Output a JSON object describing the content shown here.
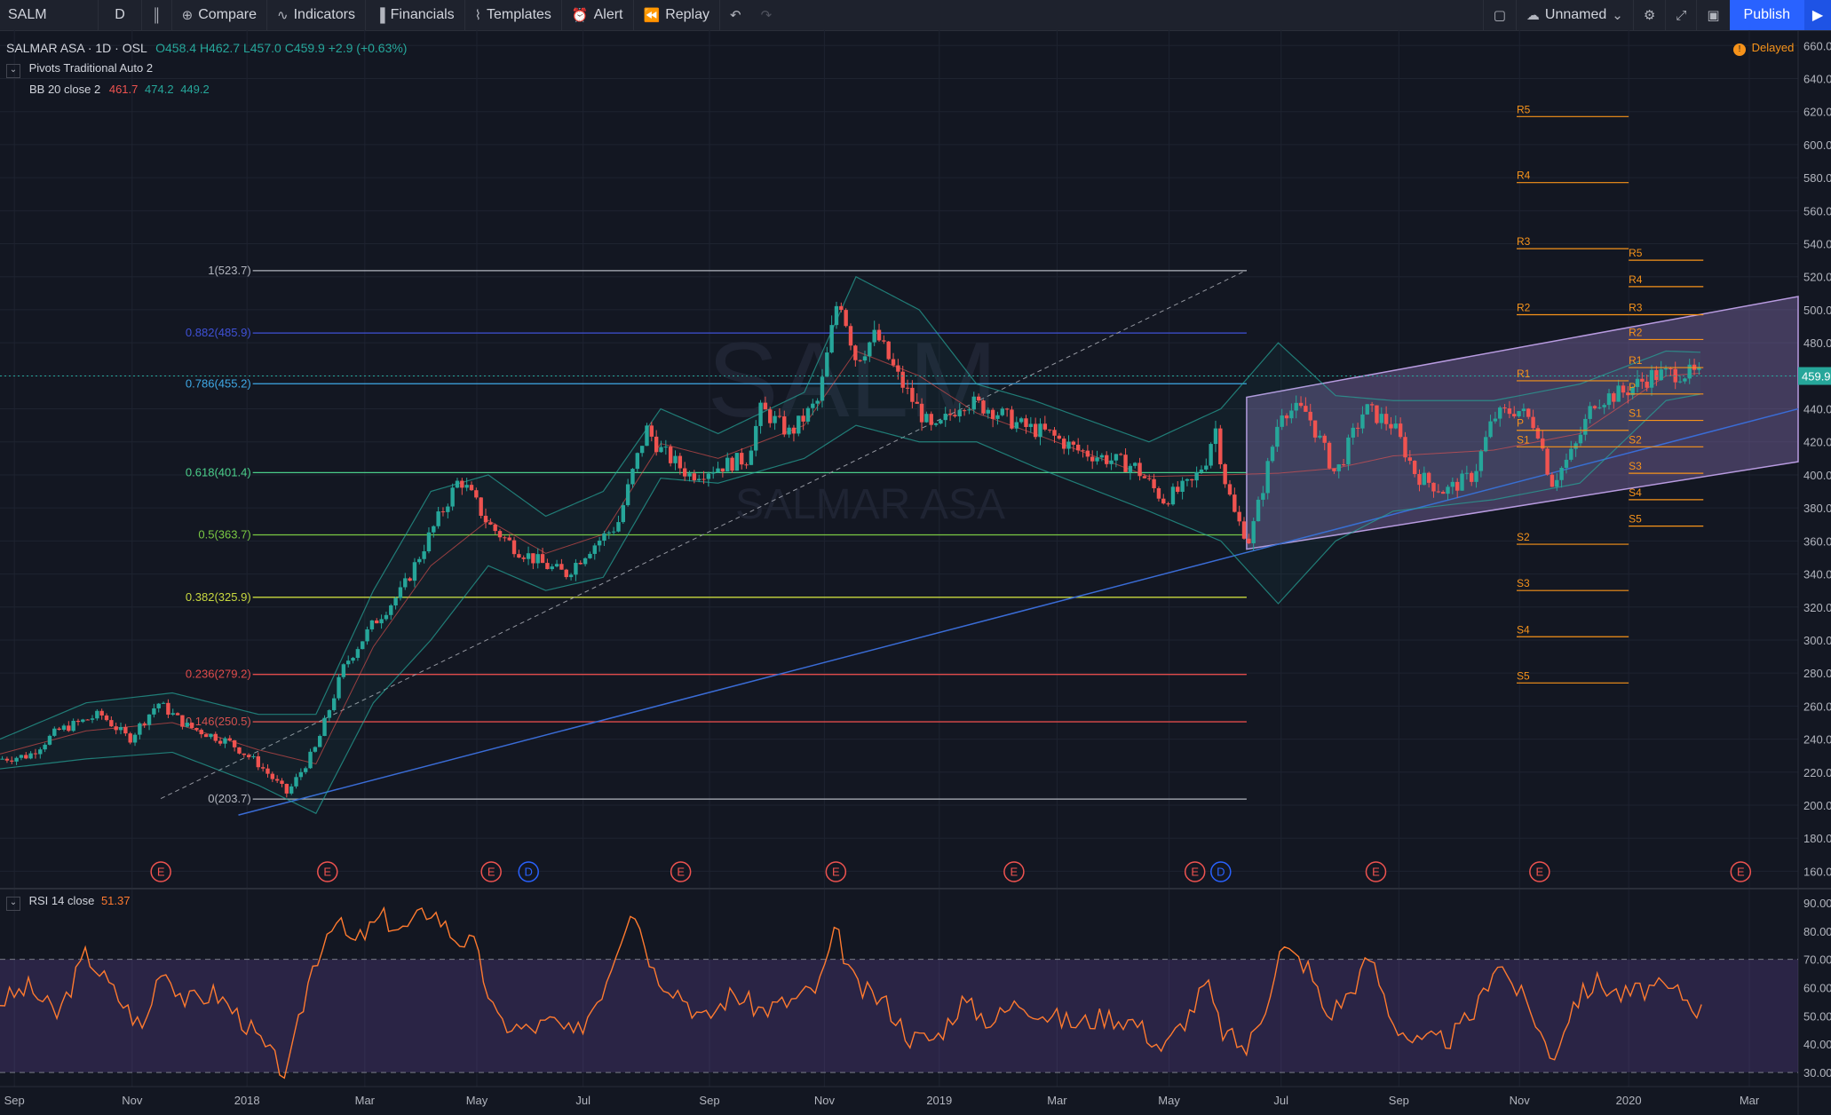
{
  "toolbar": {
    "symbol": "SALM",
    "interval": "D",
    "compare": "Compare",
    "indicators": "Indicators",
    "financials": "Financials",
    "templates": "Templates",
    "alert": "Alert",
    "replay": "Replay",
    "layout_name": "Unnamed",
    "publish": "Publish"
  },
  "legend": {
    "title": "SALMAR ASA · 1D · OSL",
    "open": "O458.4",
    "high": "H462.7",
    "low": "L457.0",
    "close": "C459.9",
    "change": "+2.9 (+0.63%)",
    "pivots": "Pivots Traditional Auto 2",
    "bb_label": "BB 20 close 2",
    "bb_basis": "461.7",
    "bb_upper": "474.2",
    "bb_lower": "449.2",
    "delayed": "Delayed",
    "rsi_label": "RSI 14 close",
    "rsi_value": "51.37",
    "watermark_symbol": "SALM",
    "watermark_name": "SALMAR ASA"
  },
  "colors": {
    "background": "#131722",
    "up": "#26a69a",
    "down": "#ef5350",
    "pivot": "#f7931a",
    "rsi": "#ff7a2f",
    "channel": "#9c7fc9",
    "trend": "#3a6cd6",
    "last_price": "#26a69a"
  },
  "chart_data": [
    {
      "type": "candlestick",
      "title": "SALMAR ASA · 1D · OSL",
      "x_labels": [
        "Sep",
        "Nov",
        "2018",
        "Mar",
        "May",
        "Jul",
        "Sep",
        "Nov",
        "2019",
        "Mar",
        "May",
        "Jul",
        "Sep",
        "Nov",
        "2020",
        "Mar"
      ],
      "x_label_pos": [
        0.5,
        4.6,
        8.6,
        12.7,
        16.6,
        20.3,
        24.7,
        28.7,
        32.7,
        36.8,
        40.7,
        44.6,
        48.7,
        52.9,
        56.7,
        60.9
      ],
      "ylim": [
        150,
        665
      ],
      "y_ticks": [
        160,
        180,
        200,
        220,
        240,
        260,
        280,
        300,
        320,
        340,
        360,
        380,
        400,
        420,
        440,
        460,
        480,
        500,
        520,
        540,
        560,
        580,
        600,
        620,
        640,
        660
      ],
      "last_price": 459.9,
      "price_series": [
        [
          0,
          228
        ],
        [
          1,
          230
        ],
        [
          2,
          245
        ],
        [
          3.5,
          255
        ],
        [
          4.5,
          240
        ],
        [
          5.5,
          262
        ],
        [
          6.5,
          248
        ],
        [
          8,
          238
        ],
        [
          9,
          225
        ],
        [
          10,
          207
        ],
        [
          11,
          235
        ],
        [
          12,
          285
        ],
        [
          13,
          310
        ],
        [
          14,
          330
        ],
        [
          15,
          365
        ],
        [
          16,
          398
        ],
        [
          16.5,
          385
        ],
        [
          17,
          370
        ],
        [
          18,
          355
        ],
        [
          19,
          345
        ],
        [
          19.7,
          340
        ],
        [
          20.5,
          355
        ],
        [
          21.5,
          370
        ],
        [
          22,
          400
        ],
        [
          22.5,
          428
        ],
        [
          23,
          415
        ],
        [
          24,
          400
        ],
        [
          25,
          405
        ],
        [
          26,
          410
        ],
        [
          26.5,
          440
        ],
        [
          27.5,
          425
        ],
        [
          28.5,
          445
        ],
        [
          29.2,
          510
        ],
        [
          29.8,
          470
        ],
        [
          30.5,
          485
        ],
        [
          31.3,
          458
        ],
        [
          32.5,
          425
        ],
        [
          33.5,
          445
        ],
        [
          34.5,
          440
        ],
        [
          35.5,
          430
        ],
        [
          36.5,
          425
        ],
        [
          37.5,
          415
        ],
        [
          38.5,
          410
        ],
        [
          39.5,
          405
        ],
        [
          40.5,
          385
        ],
        [
          41.5,
          395
        ],
        [
          42,
          410
        ],
        [
          42.3,
          430
        ],
        [
          42.6,
          400
        ],
        [
          43,
          375
        ],
        [
          43.5,
          360
        ],
        [
          44,
          395
        ],
        [
          44.6,
          440
        ],
        [
          45.5,
          438
        ],
        [
          46.5,
          400
        ],
        [
          47.5,
          440
        ],
        [
          48.5,
          430
        ],
        [
          49.3,
          400
        ],
        [
          50.3,
          390
        ],
        [
          51.3,
          400
        ],
        [
          52,
          435
        ],
        [
          52.8,
          440
        ],
        [
          53.5,
          430
        ],
        [
          54,
          395
        ],
        [
          54.8,
          415
        ],
        [
          55.5,
          445
        ],
        [
          56.5,
          450
        ],
        [
          57.5,
          460
        ],
        [
          58.5,
          462
        ],
        [
          59.3,
          459.9
        ]
      ],
      "bollinger": {
        "upper": [
          [
            0,
            240
          ],
          [
            3,
            262
          ],
          [
            6,
            268
          ],
          [
            9,
            255
          ],
          [
            11,
            255
          ],
          [
            13,
            330
          ],
          [
            15,
            390
          ],
          [
            17,
            400
          ],
          [
            19,
            375
          ],
          [
            21,
            390
          ],
          [
            23,
            440
          ],
          [
            25,
            425
          ],
          [
            28,
            450
          ],
          [
            29.8,
            520
          ],
          [
            32,
            500
          ],
          [
            34,
            455
          ],
          [
            36,
            445
          ],
          [
            40,
            420
          ],
          [
            42.5,
            440
          ],
          [
            44.5,
            480
          ],
          [
            46.5,
            448
          ],
          [
            48.5,
            445
          ],
          [
            52,
            445
          ],
          [
            55,
            455
          ],
          [
            58,
            475
          ],
          [
            59.3,
            474.2
          ]
        ],
        "lower": [
          [
            0,
            222
          ],
          [
            3,
            228
          ],
          [
            6,
            232
          ],
          [
            9,
            212
          ],
          [
            11,
            195
          ],
          [
            13,
            262
          ],
          [
            15,
            300
          ],
          [
            17,
            345
          ],
          [
            19,
            330
          ],
          [
            21,
            338
          ],
          [
            23,
            398
          ],
          [
            25,
            395
          ],
          [
            28,
            410
          ],
          [
            29.8,
            430
          ],
          [
            32,
            420
          ],
          [
            34,
            420
          ],
          [
            36,
            405
          ],
          [
            40,
            378
          ],
          [
            42.5,
            360
          ],
          [
            44.5,
            322
          ],
          [
            46.5,
            360
          ],
          [
            48.5,
            378
          ],
          [
            52,
            385
          ],
          [
            55,
            395
          ],
          [
            58,
            445
          ],
          [
            59.3,
            449.2
          ]
        ]
      },
      "fibonacci": [
        {
          "label": "1(523.7)",
          "value": 523.7,
          "color": "#b2b5be"
        },
        {
          "label": "0.882(485.9)",
          "value": 485.9,
          "color": "#3f51d6"
        },
        {
          "label": "0.786(455.2)",
          "value": 455.2,
          "color": "#3fa9e6"
        },
        {
          "label": "0.618(401.4)",
          "value": 401.4,
          "color": "#4bce8a"
        },
        {
          "label": "0.5(363.7)",
          "value": 363.7,
          "color": "#7ac943"
        },
        {
          "label": "0.382(325.9)",
          "value": 325.9,
          "color": "#c9d93f"
        },
        {
          "label": "0.236(279.2)",
          "value": 279.2,
          "color": "#e04b4b"
        },
        {
          "label": "0.146(250.5)",
          "value": 250.5,
          "color": "#e04b4b"
        },
        {
          "label": "0(203.7)",
          "value": 203.7,
          "color": "#b2b5be"
        }
      ],
      "fib_x_range": [
        8.8,
        43.4
      ],
      "pivots_2019": [
        {
          "label": "R5",
          "value": 617
        },
        {
          "label": "R4",
          "value": 577
        },
        {
          "label": "R3",
          "value": 537
        },
        {
          "label": "R2",
          "value": 497
        },
        {
          "label": "R1",
          "value": 457
        },
        {
          "label": "P",
          "value": 427
        },
        {
          "label": "S1",
          "value": 417
        },
        {
          "label": "S2",
          "value": 358
        },
        {
          "label": "S3",
          "value": 330
        },
        {
          "label": "S4",
          "value": 302
        },
        {
          "label": "S5",
          "value": 274
        }
      ],
      "pivots_2020": [
        {
          "label": "R5",
          "value": 530
        },
        {
          "label": "R4",
          "value": 514
        },
        {
          "label": "R3",
          "value": 497
        },
        {
          "label": "R2",
          "value": 482
        },
        {
          "label": "R1",
          "value": 465
        },
        {
          "label": "P",
          "value": 449
        },
        {
          "label": "S1",
          "value": 433
        },
        {
          "label": "S2",
          "value": 417
        },
        {
          "label": "S3",
          "value": 401
        },
        {
          "label": "S4",
          "value": 385
        },
        {
          "label": "S5",
          "value": 369
        }
      ],
      "channel": {
        "x": [
          43.4,
          62.6
        ],
        "lower": [
          355,
          408
        ],
        "upper": [
          447,
          508
        ]
      },
      "trendline": {
        "x": [
          8.3,
          62.6
        ],
        "y": [
          194,
          440
        ]
      },
      "dashed_trend": {
        "x": [
          5.6,
          43.4
        ],
        "y": [
          204,
          524
        ]
      },
      "events": [
        {
          "label": "E",
          "x": 5.6
        },
        {
          "label": "E",
          "x": 11.4
        },
        {
          "label": "E",
          "x": 17.1
        },
        {
          "label": "D",
          "x": 18.4
        },
        {
          "label": "E",
          "x": 23.7
        },
        {
          "label": "E",
          "x": 29.1
        },
        {
          "label": "E",
          "x": 35.3
        },
        {
          "label": "E",
          "x": 41.6
        },
        {
          "label": "D",
          "x": 42.5
        },
        {
          "label": "E",
          "x": 47.9
        },
        {
          "label": "E",
          "x": 53.6
        },
        {
          "label": "E",
          "x": 60.6
        }
      ]
    },
    {
      "type": "line",
      "title": "RSI 14 close",
      "ylim": [
        25,
        95
      ],
      "y_ticks": [
        30,
        40,
        50,
        60,
        70,
        80,
        90
      ],
      "band": [
        30,
        70
      ],
      "series": [
        {
          "name": "RSI 14 close",
          "points": [
            [
              0,
              55
            ],
            [
              1,
              60
            ],
            [
              2,
              50
            ],
            [
              3,
              72
            ],
            [
              4,
              58
            ],
            [
              5,
              45
            ],
            [
              5.6,
              68
            ],
            [
              6.5,
              55
            ],
            [
              7.5,
              58
            ],
            [
              8.5,
              48
            ],
            [
              9.5,
              35
            ],
            [
              10,
              29
            ],
            [
              10.8,
              65
            ],
            [
              11.6,
              85
            ],
            [
              12.3,
              75
            ],
            [
              13.3,
              85
            ],
            [
              14,
              80
            ],
            [
              15,
              88
            ],
            [
              15.8,
              78
            ],
            [
              16.5,
              75
            ],
            [
              17.3,
              48
            ],
            [
              18.3,
              45
            ],
            [
              19.3,
              48
            ],
            [
              20,
              42
            ],
            [
              21,
              60
            ],
            [
              22,
              90
            ],
            [
              22.8,
              65
            ],
            [
              23.7,
              58
            ],
            [
              24.5,
              48
            ],
            [
              25.5,
              58
            ],
            [
              26.5,
              52
            ],
            [
              27.5,
              55
            ],
            [
              28.5,
              60
            ],
            [
              29.1,
              80
            ],
            [
              29.8,
              60
            ],
            [
              30.8,
              55
            ],
            [
              31.7,
              42
            ],
            [
              32.6,
              42
            ],
            [
              33.5,
              55
            ],
            [
              34.5,
              48
            ],
            [
              35.5,
              55
            ],
            [
              36.5,
              50
            ],
            [
              37.5,
              47
            ],
            [
              38.5,
              50
            ],
            [
              39.5,
              48
            ],
            [
              40.5,
              38
            ],
            [
              41.5,
              52
            ],
            [
              42,
              62
            ],
            [
              42.5,
              45
            ],
            [
              43.4,
              38
            ],
            [
              44,
              52
            ],
            [
              44.6,
              74
            ],
            [
              45.5,
              68
            ],
            [
              46.2,
              50
            ],
            [
              47,
              58
            ],
            [
              47.7,
              71
            ],
            [
              48.5,
              48
            ],
            [
              49.3,
              40
            ],
            [
              50.5,
              42
            ],
            [
              51.4,
              52
            ],
            [
              52.1,
              70
            ],
            [
              52.9,
              58
            ],
            [
              53.5,
              48
            ],
            [
              54,
              34
            ],
            [
              54.8,
              55
            ],
            [
              55.6,
              62
            ],
            [
              56.5,
              57
            ],
            [
              57.5,
              60
            ],
            [
              58.5,
              58
            ],
            [
              59.3,
              51
            ]
          ]
        }
      ]
    }
  ]
}
